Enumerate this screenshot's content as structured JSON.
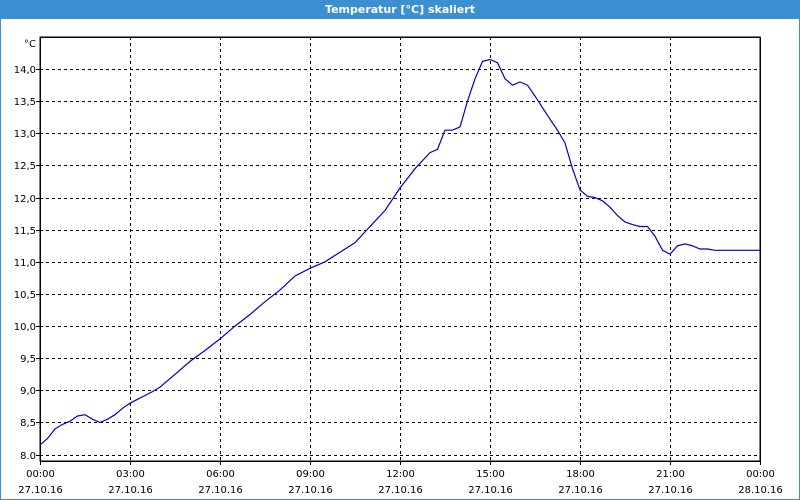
{
  "window": {
    "title": "Temperatur [°C] skaliert"
  },
  "colors": {
    "titlebar": "#3c8fd0",
    "line": "#0000cc",
    "grid": "#000000"
  },
  "chart_data": {
    "type": "line",
    "title": "Temperatur [°C] skaliert",
    "ylabel": "°C",
    "xlabel": "",
    "grid": true,
    "ylim": [
      7.9,
      14.5
    ],
    "xlim_hours": [
      0,
      24
    ],
    "y_ticks": [
      "8.0",
      "8,5",
      "9,0",
      "9,5",
      "10,0",
      "10,5",
      "11,0",
      "11,5",
      "12,0",
      "12,5",
      "13,0",
      "13,5",
      "14,0"
    ],
    "x_ticks": [
      {
        "time": "00:00",
        "date": "27.10.16"
      },
      {
        "time": "03:00",
        "date": "27.10.16"
      },
      {
        "time": "06:00",
        "date": "27.10.16"
      },
      {
        "time": "09:00",
        "date": "27.10.16"
      },
      {
        "time": "12:00",
        "date": "27.10.16"
      },
      {
        "time": "15:00",
        "date": "27.10.16"
      },
      {
        "time": "18:00",
        "date": "27.10.16"
      },
      {
        "time": "21:00",
        "date": "27.10.16"
      },
      {
        "time": "00:00",
        "date": "28.10.16"
      }
    ],
    "series": [
      {
        "x": [
          0,
          0.25,
          0.5,
          0.75,
          1.0,
          1.25,
          1.5,
          1.75,
          2.0,
          2.25,
          2.5,
          2.75,
          3.0,
          3.25,
          3.5,
          3.75,
          4.0,
          4.5,
          5.0,
          5.5,
          6.0,
          6.5,
          7.0,
          7.5,
          8.0,
          8.5,
          9.0,
          9.5,
          10.0,
          10.5,
          11.0,
          11.5,
          12.0,
          12.5,
          13.0,
          13.25,
          13.5,
          13.75,
          14.0,
          14.25,
          14.5,
          14.75,
          15.0,
          15.25,
          15.5,
          15.75,
          16.0,
          16.25,
          16.5,
          16.75,
          17.0,
          17.25,
          17.5,
          17.75,
          18.0,
          18.25,
          18.5,
          18.75,
          19.0,
          19.25,
          19.5,
          19.75,
          20.0,
          20.25,
          20.5,
          20.75,
          21.0,
          21.25,
          21.5,
          21.75,
          22.0,
          22.25,
          22.5,
          22.75,
          23.0,
          23.25,
          23.5,
          23.75,
          24.0
        ],
        "y": [
          8.15,
          8.25,
          8.4,
          8.47,
          8.52,
          8.6,
          8.62,
          8.55,
          8.5,
          8.55,
          8.62,
          8.72,
          8.8,
          8.86,
          8.92,
          8.98,
          9.05,
          9.25,
          9.45,
          9.62,
          9.8,
          10.0,
          10.18,
          10.38,
          10.56,
          10.78,
          10.9,
          11.0,
          11.15,
          11.3,
          11.55,
          11.8,
          12.15,
          12.45,
          12.7,
          12.75,
          13.05,
          13.05,
          13.1,
          13.5,
          13.85,
          14.12,
          14.15,
          14.1,
          13.85,
          13.75,
          13.8,
          13.75,
          13.58,
          13.4,
          13.22,
          13.05,
          12.85,
          12.45,
          12.12,
          12.02,
          12.0,
          11.95,
          11.85,
          11.72,
          11.62,
          11.58,
          11.55,
          11.55,
          11.4,
          11.18,
          11.12,
          11.25,
          11.28,
          11.25,
          11.2,
          11.2,
          11.18,
          11.18,
          11.18,
          11.18,
          11.18,
          11.18,
          11.18
        ]
      }
    ]
  }
}
